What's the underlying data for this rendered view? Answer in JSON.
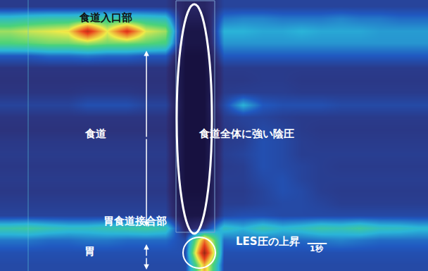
{
  "chart_data": {
    "type": "heatmap",
    "tick_labels": false,
    "xlim": [
      0,
      22
    ],
    "ylim": [
      0,
      38.5
    ],
    "zlim": [
      -20,
      150
    ],
    "x": [
      0.5,
      1.5,
      2.5,
      3.5,
      4.5,
      5.5,
      6.5,
      7.5,
      8.5,
      9.5,
      10.5,
      11.5,
      12.5,
      13.5,
      14.5,
      15.5,
      16.5,
      17.5,
      18.5,
      19.5,
      20.5,
      21.5
    ],
    "y": [
      0.875,
      2.625,
      4.375,
      6.125,
      7.875,
      9.625,
      11.375,
      13.125,
      14.875,
      16.625,
      18.375,
      20.125,
      21.875,
      23.625,
      25.375,
      27.125,
      28.875,
      30.625,
      32.375,
      34.125,
      35.875,
      37.625
    ],
    "z": [
      [
        5,
        5,
        5,
        5,
        5,
        5,
        5,
        5,
        5,
        -5,
        -5,
        8,
        8,
        8,
        8,
        8,
        8,
        8,
        8,
        8,
        8,
        8
      ],
      [
        35,
        38,
        40,
        40,
        42,
        42,
        40,
        38,
        35,
        -10,
        -10,
        20,
        22,
        22,
        20,
        20,
        20,
        22,
        20,
        20,
        18,
        18
      ],
      [
        60,
        65,
        68,
        72,
        110,
        70,
        105,
        68,
        60,
        -15,
        -15,
        30,
        30,
        28,
        28,
        30,
        28,
        28,
        28,
        26,
        26,
        26
      ],
      [
        50,
        52,
        55,
        55,
        60,
        55,
        55,
        52,
        48,
        -15,
        -15,
        25,
        25,
        25,
        25,
        25,
        25,
        25,
        25,
        25,
        25,
        25
      ],
      [
        15,
        15,
        18,
        18,
        20,
        18,
        18,
        15,
        15,
        -18,
        -18,
        15,
        15,
        15,
        15,
        15,
        15,
        15,
        15,
        15,
        15,
        15
      ],
      [
        3,
        3,
        3,
        3,
        3,
        3,
        3,
        3,
        3,
        -18,
        -18,
        5,
        5,
        5,
        5,
        5,
        5,
        5,
        5,
        5,
        5,
        5
      ],
      [
        2,
        2,
        2,
        2,
        2,
        2,
        2,
        2,
        2,
        -18,
        -18,
        4,
        4,
        5,
        5,
        4,
        4,
        4,
        4,
        4,
        4,
        4
      ],
      [
        3,
        3,
        3,
        3,
        4,
        4,
        4,
        3,
        3,
        -18,
        -18,
        5,
        6,
        6,
        6,
        5,
        5,
        5,
        5,
        5,
        5,
        5
      ],
      [
        8,
        8,
        8,
        8,
        12,
        12,
        12,
        8,
        8,
        -18,
        -18,
        10,
        30,
        15,
        12,
        12,
        12,
        10,
        10,
        10,
        10,
        10
      ],
      [
        3,
        3,
        3,
        3,
        3,
        3,
        3,
        3,
        3,
        -18,
        -18,
        5,
        8,
        8,
        6,
        5,
        5,
        5,
        5,
        5,
        5,
        5
      ],
      [
        2,
        2,
        2,
        2,
        2,
        2,
        2,
        2,
        2,
        -18,
        -18,
        4,
        6,
        10,
        8,
        5,
        4,
        4,
        4,
        4,
        4,
        4
      ],
      [
        4,
        4,
        4,
        4,
        4,
        4,
        4,
        4,
        4,
        -18,
        -18,
        5,
        6,
        12,
        10,
        6,
        5,
        5,
        5,
        5,
        5,
        5
      ],
      [
        5,
        5,
        5,
        5,
        5,
        5,
        5,
        5,
        5,
        -18,
        -18,
        6,
        8,
        12,
        10,
        6,
        6,
        6,
        6,
        6,
        6,
        6
      ],
      [
        4,
        4,
        4,
        4,
        4,
        4,
        4,
        4,
        4,
        -18,
        -18,
        5,
        6,
        12,
        10,
        8,
        6,
        5,
        5,
        5,
        5,
        5
      ],
      [
        5,
        5,
        5,
        5,
        5,
        5,
        5,
        5,
        5,
        -18,
        -18,
        6,
        6,
        10,
        12,
        8,
        6,
        6,
        6,
        6,
        6,
        6
      ],
      [
        4,
        4,
        4,
        4,
        4,
        4,
        4,
        4,
        4,
        -18,
        -18,
        5,
        5,
        8,
        12,
        10,
        6,
        5,
        5,
        5,
        5,
        5
      ],
      [
        6,
        6,
        6,
        6,
        6,
        6,
        6,
        6,
        6,
        -16,
        -16,
        6,
        6,
        8,
        10,
        10,
        8,
        6,
        6,
        6,
        6,
        6
      ],
      [
        8,
        8,
        8,
        8,
        8,
        8,
        8,
        8,
        8,
        -15,
        -15,
        10,
        12,
        12,
        10,
        10,
        10,
        10,
        10,
        10,
        10,
        10
      ],
      [
        40,
        42,
        38,
        35,
        35,
        38,
        40,
        42,
        38,
        -5,
        5,
        35,
        30,
        38,
        32,
        35,
        40,
        38,
        42,
        36,
        35,
        32
      ],
      [
        20,
        20,
        18,
        18,
        20,
        20,
        18,
        18,
        18,
        10,
        90,
        18,
        20,
        18,
        20,
        18,
        20,
        22,
        20,
        18,
        18,
        18
      ],
      [
        12,
        12,
        12,
        12,
        12,
        12,
        12,
        12,
        12,
        12,
        120,
        12,
        12,
        12,
        12,
        12,
        12,
        12,
        12,
        12,
        12,
        12
      ],
      [
        10,
        10,
        10,
        10,
        10,
        10,
        10,
        10,
        10,
        10,
        80,
        10,
        10,
        10,
        10,
        10,
        10,
        10,
        10,
        10,
        10,
        10
      ]
    ],
    "annotations": [
      "食道入口部",
      "食道",
      "食道全体に強い陰圧",
      "胃食道接合部",
      "LES圧の上昇",
      "胃"
    ],
    "scale_bar": {
      "label": "1秒",
      "seconds": 1
    }
  }
}
